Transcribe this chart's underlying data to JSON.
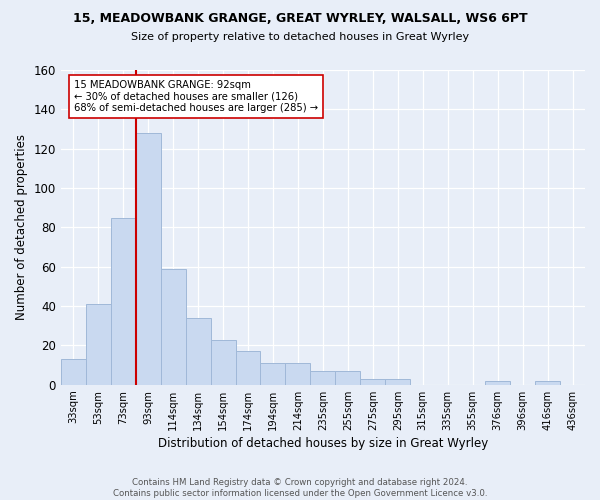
{
  "title1": "15, MEADOWBANK GRANGE, GREAT WYRLEY, WALSALL, WS6 6PT",
  "title2": "Size of property relative to detached houses in Great Wyrley",
  "xlabel": "Distribution of detached houses by size in Great Wyrley",
  "ylabel": "Number of detached properties",
  "categories": [
    "33sqm",
    "53sqm",
    "73sqm",
    "93sqm",
    "114sqm",
    "134sqm",
    "154sqm",
    "174sqm",
    "194sqm",
    "214sqm",
    "235sqm",
    "255sqm",
    "275sqm",
    "295sqm",
    "315sqm",
    "335sqm",
    "355sqm",
    "376sqm",
    "396sqm",
    "416sqm",
    "436sqm"
  ],
  "bar_values": [
    13,
    41,
    85,
    128,
    59,
    34,
    23,
    17,
    11,
    11,
    7,
    7,
    3,
    3,
    0,
    0,
    0,
    2,
    0,
    2,
    0
  ],
  "bar_color": "#c9d9f0",
  "bar_edge_color": "#a0b8d8",
  "vline_x": 2.5,
  "vline_color": "#cc0000",
  "annotation_text": "15 MEADOWBANK GRANGE: 92sqm\n← 30% of detached houses are smaller (126)\n68% of semi-detached houses are larger (285) →",
  "annotation_box_color": "#ffffff",
  "annotation_box_edge": "#cc0000",
  "ylim": [
    0,
    160
  ],
  "yticks": [
    0,
    20,
    40,
    60,
    80,
    100,
    120,
    140,
    160
  ],
  "background_color": "#e8eef8",
  "grid_color": "#ffffff",
  "footer": "Contains HM Land Registry data © Crown copyright and database right 2024.\nContains public sector information licensed under the Open Government Licence v3.0."
}
